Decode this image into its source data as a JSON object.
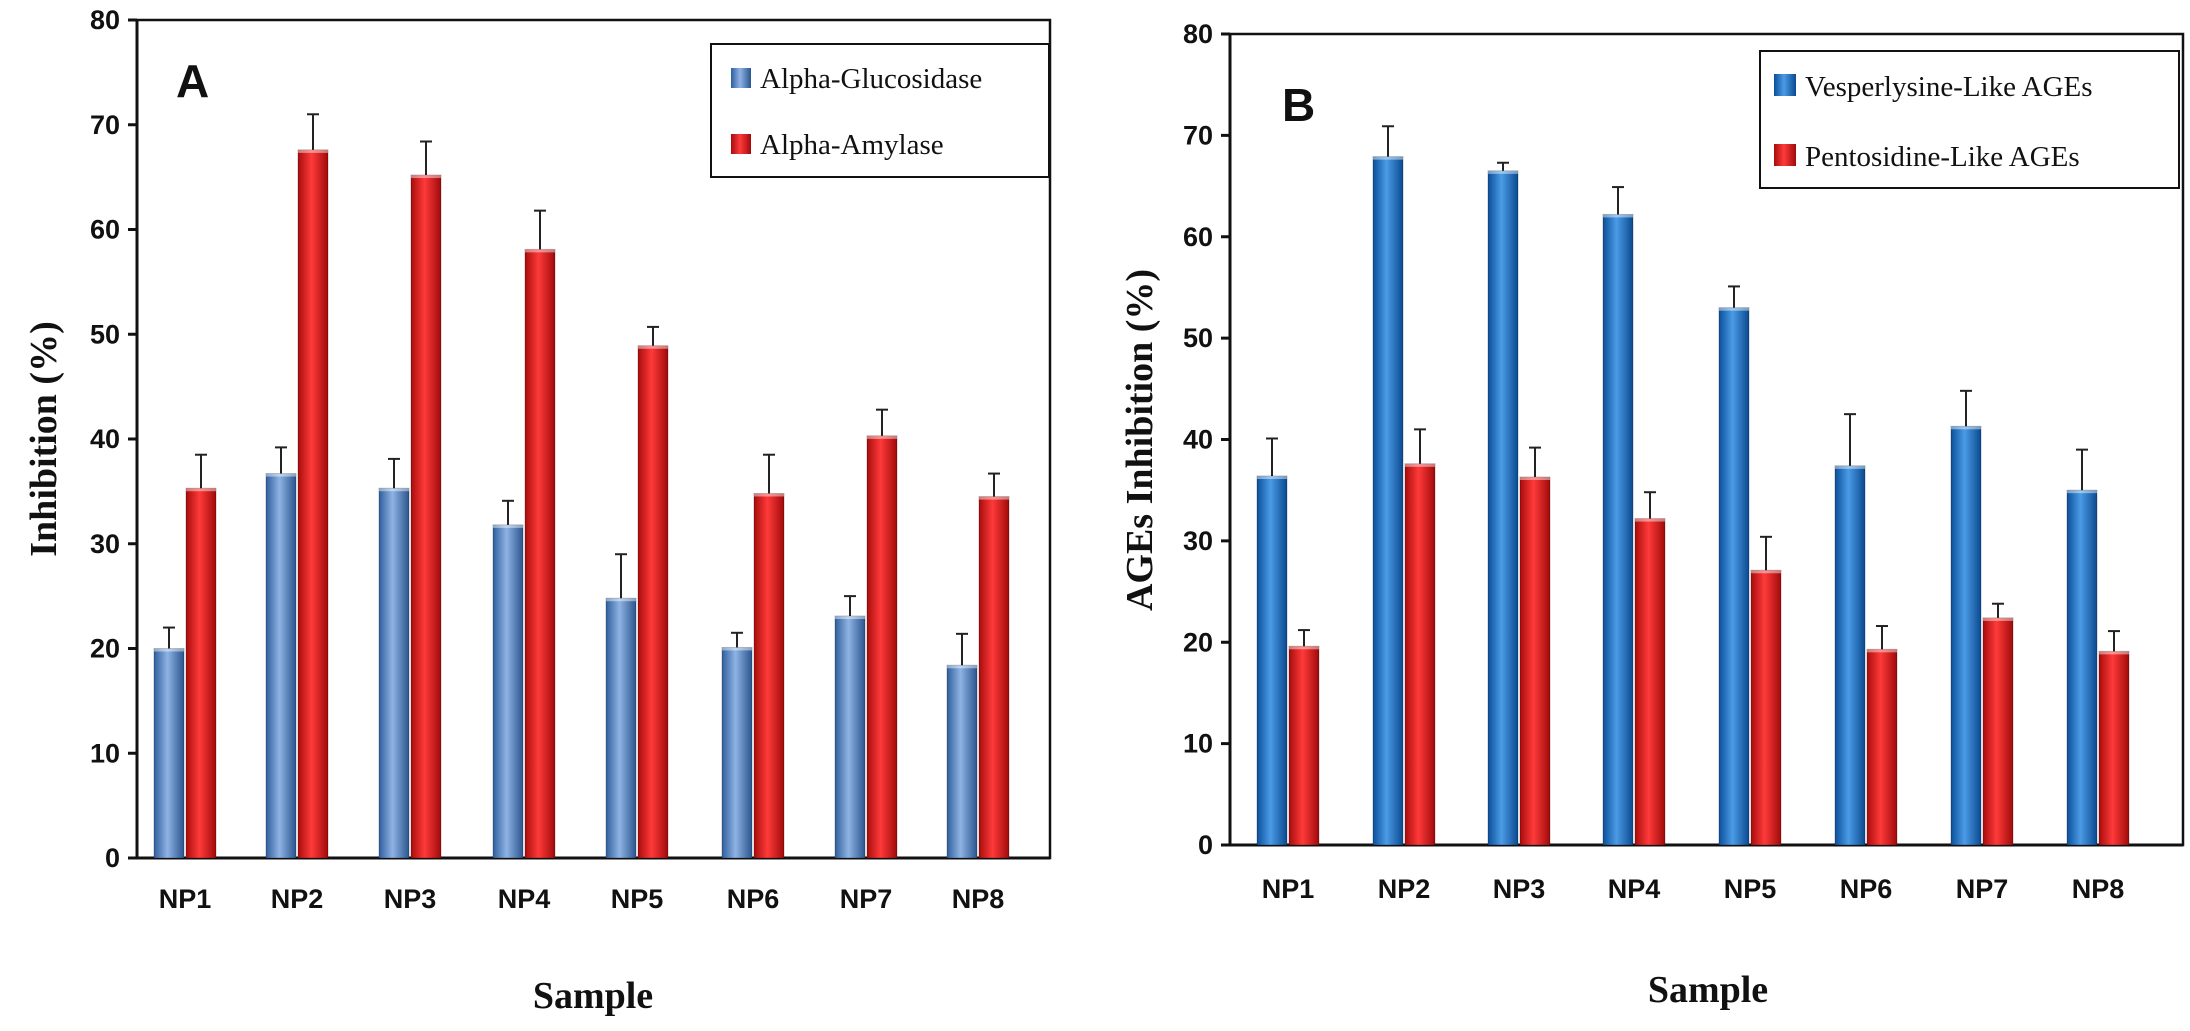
{
  "chart_data": [
    {
      "type": "bar",
      "panel_label": "A",
      "title": "",
      "xlabel": "Sample",
      "ylabel": "Inhibition (%)",
      "ylim": [
        0,
        80
      ],
      "yticks": [
        0,
        10,
        20,
        30,
        40,
        50,
        60,
        70,
        80
      ],
      "categories": [
        "NP1",
        "NP2",
        "NP3",
        "NP4",
        "NP5",
        "NP6",
        "NP7",
        "NP8"
      ],
      "legend_position": "top-right",
      "series": [
        {
          "name": "Alpha-Glucosidase",
          "color": "#4f7fbf",
          "values": [
            20,
            36.7,
            35.3,
            31.8,
            24.8,
            20.1,
            23.1,
            18.4
          ],
          "errors": [
            2,
            2.5,
            2.8,
            2.3,
            4.2,
            1.4,
            1.9,
            3.0
          ]
        },
        {
          "name": "Alpha-Amylase",
          "color": "#e81b1b",
          "values": [
            35.3,
            67.6,
            65.2,
            58.1,
            48.9,
            34.8,
            40.3,
            34.5
          ],
          "errors": [
            3.2,
            3.4,
            3.2,
            3.7,
            1.8,
            3.7,
            2.5,
            2.2
          ]
        }
      ]
    },
    {
      "type": "bar",
      "panel_label": "B",
      "title": "",
      "xlabel": "Sample",
      "ylabel": "AGEs Inhibition (%)",
      "ylim": [
        0,
        80
      ],
      "yticks": [
        0,
        10,
        20,
        30,
        40,
        50,
        60,
        70,
        80
      ],
      "categories": [
        "NP1",
        "NP2",
        "NP3",
        "NP4",
        "NP5",
        "NP6",
        "NP7",
        "NP8"
      ],
      "legend_position": "top-right",
      "series": [
        {
          "name": "Vesperlysine-Like AGEs",
          "color": "#1e73c8",
          "values": [
            36.4,
            67.9,
            66.5,
            62.2,
            53.0,
            37.4,
            41.3,
            35.0
          ],
          "errors": [
            3.7,
            3.0,
            0.8,
            2.7,
            2.1,
            5.1,
            3.5,
            4.0
          ]
        },
        {
          "name": "Pentosidine-Like AGEs",
          "color": "#e81b1b",
          "values": [
            19.6,
            37.6,
            36.3,
            32.2,
            27.1,
            19.3,
            22.4,
            19.1
          ],
          "errors": [
            1.6,
            3.4,
            2.9,
            2.6,
            3.3,
            2.3,
            1.4,
            2.0
          ]
        }
      ]
    }
  ]
}
